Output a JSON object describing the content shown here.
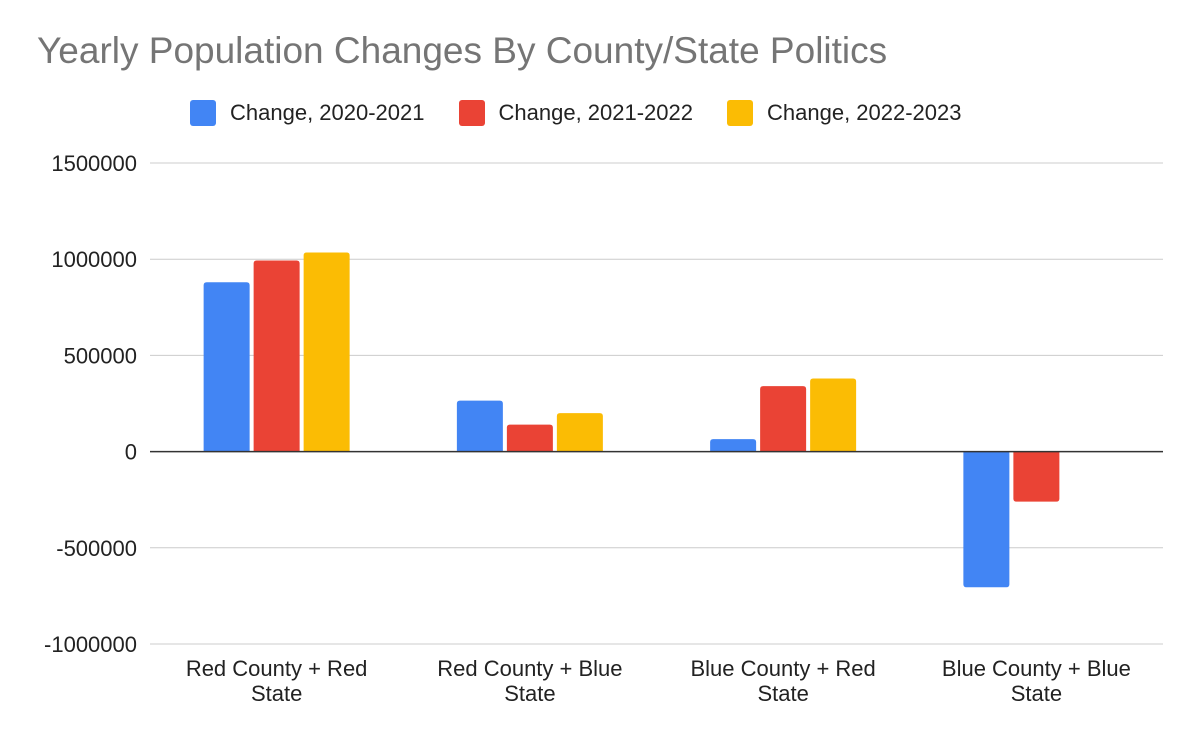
{
  "chart_data": {
    "type": "bar",
    "title": "Yearly Population Changes By County/State Politics",
    "xlabel": "",
    "ylabel": "",
    "categories": [
      [
        "Red County + Red",
        "State"
      ],
      [
        "Red County + Blue",
        "State"
      ],
      [
        "Blue County + Red",
        "State"
      ],
      [
        "Blue County + Blue",
        "State"
      ]
    ],
    "series": [
      {
        "name": "Change, 2020-2021",
        "color": "#4285f4",
        "values": [
          880000,
          265000,
          65000,
          -705000
        ]
      },
      {
        "name": "Change, 2021-2022",
        "color": "#ea4335",
        "values": [
          993000,
          140000,
          340000,
          -260000
        ]
      },
      {
        "name": "Change, 2022-2023",
        "color": "#fbbc04",
        "values": [
          1035000,
          200000,
          380000,
          0
        ]
      }
    ],
    "ylim": [
      -1000000,
      1500000
    ],
    "yticks": [
      "1500000",
      "1000000",
      "500000",
      "0",
      "-500000",
      "-1000000"
    ],
    "ytick_values": [
      1500000,
      1000000,
      500000,
      0,
      -500000,
      -1000000
    ],
    "grid": true,
    "legend_position": "top"
  }
}
